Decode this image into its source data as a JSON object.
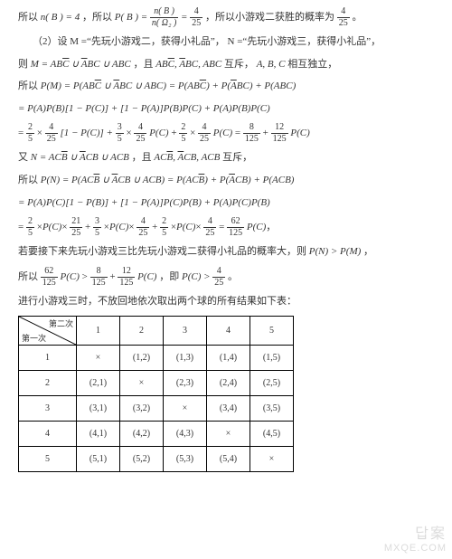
{
  "lines": {
    "l1a": "所以",
    "l1b": "，所以",
    "l1c": "，所以小游戏二获胜的概率为",
    "l1d": "。",
    "l2": "（2）设 M =“先玩小游戏二，获得小礼品”， N =“先玩小游戏三，获得小礼品”，",
    "l3a": "则",
    "l3b": "，且",
    "l3c": "互斥，",
    "l3d": "相互独立，",
    "l4": "所以",
    "l8a": "又",
    "l8b": "，且",
    "l8c": "互斥，",
    "l9": "所以",
    "l12a": "若要接下来先玩小游戏三比先玩小游戏二获得小礼品的概率大，则",
    "l12b": "，",
    "l13a": "所以",
    "l13b": "，即",
    "l13c": "。",
    "l14": "进行小游戏三时，不放回地依次取出两个球的所有结果如下表："
  },
  "eq": {
    "nB": "n( B ) = 4",
    "PB_lhs": "P( B ) = ",
    "PB_num": "n( B )",
    "PB_den": "n( Ω₂ )",
    "eq_sign": " = ",
    "f4_25_n": "4",
    "f4_25_d": "25",
    "M_expr": "M = AB C̅ ∪ A̅BC ∪ ABC",
    "M_sets": "AB C̅, A̅BC, ABC ",
    "ABC": "A, B, C ",
    "PM": "P(M) = P(AB C̅ ∪ A̅BC ∪ ABC) = P(AB C̅) + P(A̅BC) + P(ABC)",
    "PM2": "= P(A)P(B)[1 − P(C)] + [1 − P(A)]P(B)P(C) + P(A)P(B)P(C)",
    "f2_5_n": "2",
    "f2_5_d": "5",
    "f3_5_n": "3",
    "f3_5_d": "5",
    "f21_25_n": "21",
    "f21_25_d": "25",
    "f8_125_n": "8",
    "f8_125_d": "125",
    "f12_125_n": "12",
    "f12_125_d": "125",
    "f62_125_n": "62",
    "f62_125_d": "125",
    "PC": "P(C)",
    "N_expr": "N = AC B̅ ∪ A̅CB ∪ ACB",
    "N_sets": "AC B̅, A̅CB, ACB ",
    "PN": "P(N) = P(AC B̅ ∪ A̅CB ∪ ACB) = P(AC B̅) + P(A̅CB) + P(ACB)",
    "PN2": "= P(A)P(C)[1 − P(B)] + [1 − P(A)]P(C)P(B) + P(A)P(C)P(B)",
    "PN_gt_PM": "P(N) > P(M)",
    "PC_gt": "P(C) > "
  },
  "table": {
    "diag_top": "第二次",
    "diag_bottom": "第一次",
    "headers": [
      "1",
      "2",
      "3",
      "4",
      "5"
    ],
    "rows": [
      {
        "h": "1",
        "cells": [
          "×",
          "(1,2)",
          "(1,3)",
          "(1,4)",
          "(1,5)"
        ]
      },
      {
        "h": "2",
        "cells": [
          "(2,1)",
          "×",
          "(2,3)",
          "(2,4)",
          "(2,5)"
        ]
      },
      {
        "h": "3",
        "cells": [
          "(3,1)",
          "(3,2)",
          "×",
          "(3,4)",
          "(3,5)"
        ]
      },
      {
        "h": "4",
        "cells": [
          "(4,1)",
          "(4,2)",
          "(4,3)",
          "×",
          "(4,5)"
        ]
      },
      {
        "h": "5",
        "cells": [
          "(5,1)",
          "(5,2)",
          "(5,3)",
          "(5,4)",
          "×"
        ]
      }
    ]
  },
  "watermark": {
    "line1": "답案",
    "line2": "MXQE.COM"
  },
  "colors": {
    "text": "#333333",
    "border": "#000000",
    "bg": "#ffffff",
    "wm": "#bfbfbf"
  }
}
